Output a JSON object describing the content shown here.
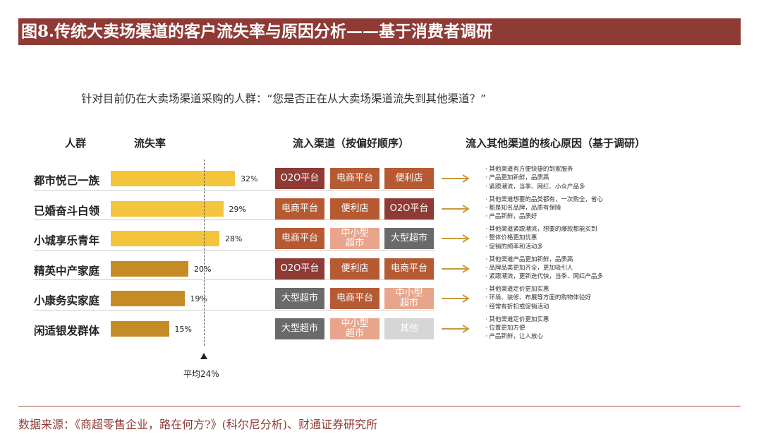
{
  "title": "图8.传统大卖场渠道的客户流失率与原因分析——基于消费者调研",
  "question": "针对目前仍在大卖场渠道采购的人群：“您是否正在从大卖场渠道流失到其他渠道？”",
  "headers": {
    "group": "人群",
    "rate": "流失率",
    "channels": "流入渠道（按偏好顺序）",
    "reasons": "流入其他渠道的核心原因（基于调研）"
  },
  "chart_data": {
    "type": "bar",
    "orientation": "horizontal",
    "title": "流失率",
    "categories": [
      "都市悦己一族",
      "已婚奋斗白领",
      "小城享乐青年",
      "精英中产家庭",
      "小康务实家庭",
      "闲适银发群体"
    ],
    "values": [
      32,
      29,
      28,
      20,
      19,
      15
    ],
    "value_labels": [
      "32%",
      "29%",
      "28%",
      "20%",
      "19%",
      "15%"
    ],
    "bar_colors": [
      "#f4c43a",
      "#f4c43a",
      "#f4c43a",
      "#c58c26",
      "#c58c26",
      "#c58c26"
    ],
    "xlim": [
      0,
      40
    ],
    "average": {
      "value": 24,
      "label": "平均24%"
    }
  },
  "rows": [
    {
      "group": "都市悦己一族",
      "channels": [
        {
          "label": "O2O平台",
          "color": "#8e3a35"
        },
        {
          "label": "电商平台",
          "color": "#b65a34"
        },
        {
          "label": "便利店",
          "color": "#b65a34"
        }
      ],
      "reasons": [
        "· 其他渠道有方便快捷的到家服务",
        "· 产品更加新鲜，品质高",
        "· 紧跟潮流，当季、网红、小众产品多"
      ]
    },
    {
      "group": "已婚奋斗白领",
      "channels": [
        {
          "label": "电商平台",
          "color": "#b65a34"
        },
        {
          "label": "便利店",
          "color": "#b65a34"
        },
        {
          "label": "O2O平台",
          "color": "#8e3a35"
        }
      ],
      "reasons": [
        "· 其他渠道想要的品类都有，一次购全，省心",
        "· 都是知名品牌，品质有保障",
        "· 产品新鲜，品质好"
      ]
    },
    {
      "group": "小城享乐青年",
      "channels": [
        {
          "label": "电商平台",
          "color": "#b65a34"
        },
        {
          "label": "中小型\n超市",
          "color": "#e8a58c"
        },
        {
          "label": "大型超市",
          "color": "#6a6a6a"
        }
      ],
      "reasons": [
        "· 其他渠道紧跟潮流，想要的爆款都能买到",
        "· 整体价格更加优惠",
        "· 促销的频率和活动多"
      ]
    },
    {
      "group": "精英中产家庭",
      "channels": [
        {
          "label": "O2O平台",
          "color": "#8e3a35"
        },
        {
          "label": "便利店",
          "color": "#b65a34"
        },
        {
          "label": "电商平台",
          "color": "#b65a34"
        }
      ],
      "reasons": [
        "· 其他渠道产品更加新鲜，品质高",
        "· 品牌品类更加齐全，更加吸引人",
        "· 紧跟潮流，更新迭代快，当季、网红产品多"
      ]
    },
    {
      "group": "小康务实家庭",
      "channels": [
        {
          "label": "大型超市",
          "color": "#6a6a6a"
        },
        {
          "label": "电商平台",
          "color": "#b65a34"
        },
        {
          "label": "中小型\n超市",
          "color": "#e8a58c"
        }
      ],
      "reasons": [
        "· 其他渠道定价更加实惠",
        "· 环境、装修、布展等方面的购物体验好",
        "· 经常有折扣或促销活动"
      ]
    },
    {
      "group": "闲适银发群体",
      "channels": [
        {
          "label": "大型超市",
          "color": "#6a6a6a"
        },
        {
          "label": "中小型\n超市",
          "color": "#e8a58c"
        },
        {
          "label": "其他",
          "color": "#d6d6d6"
        }
      ],
      "reasons": [
        "· 其他渠道定价更加实惠",
        "· 位置更加方便",
        "· 产品新鲜，让人放心"
      ]
    }
  ],
  "arrow_color": "#c89a3c",
  "source": "数据来源：《商超零售企业，路在何方?》(科尔尼分析)、财通证券研究所"
}
